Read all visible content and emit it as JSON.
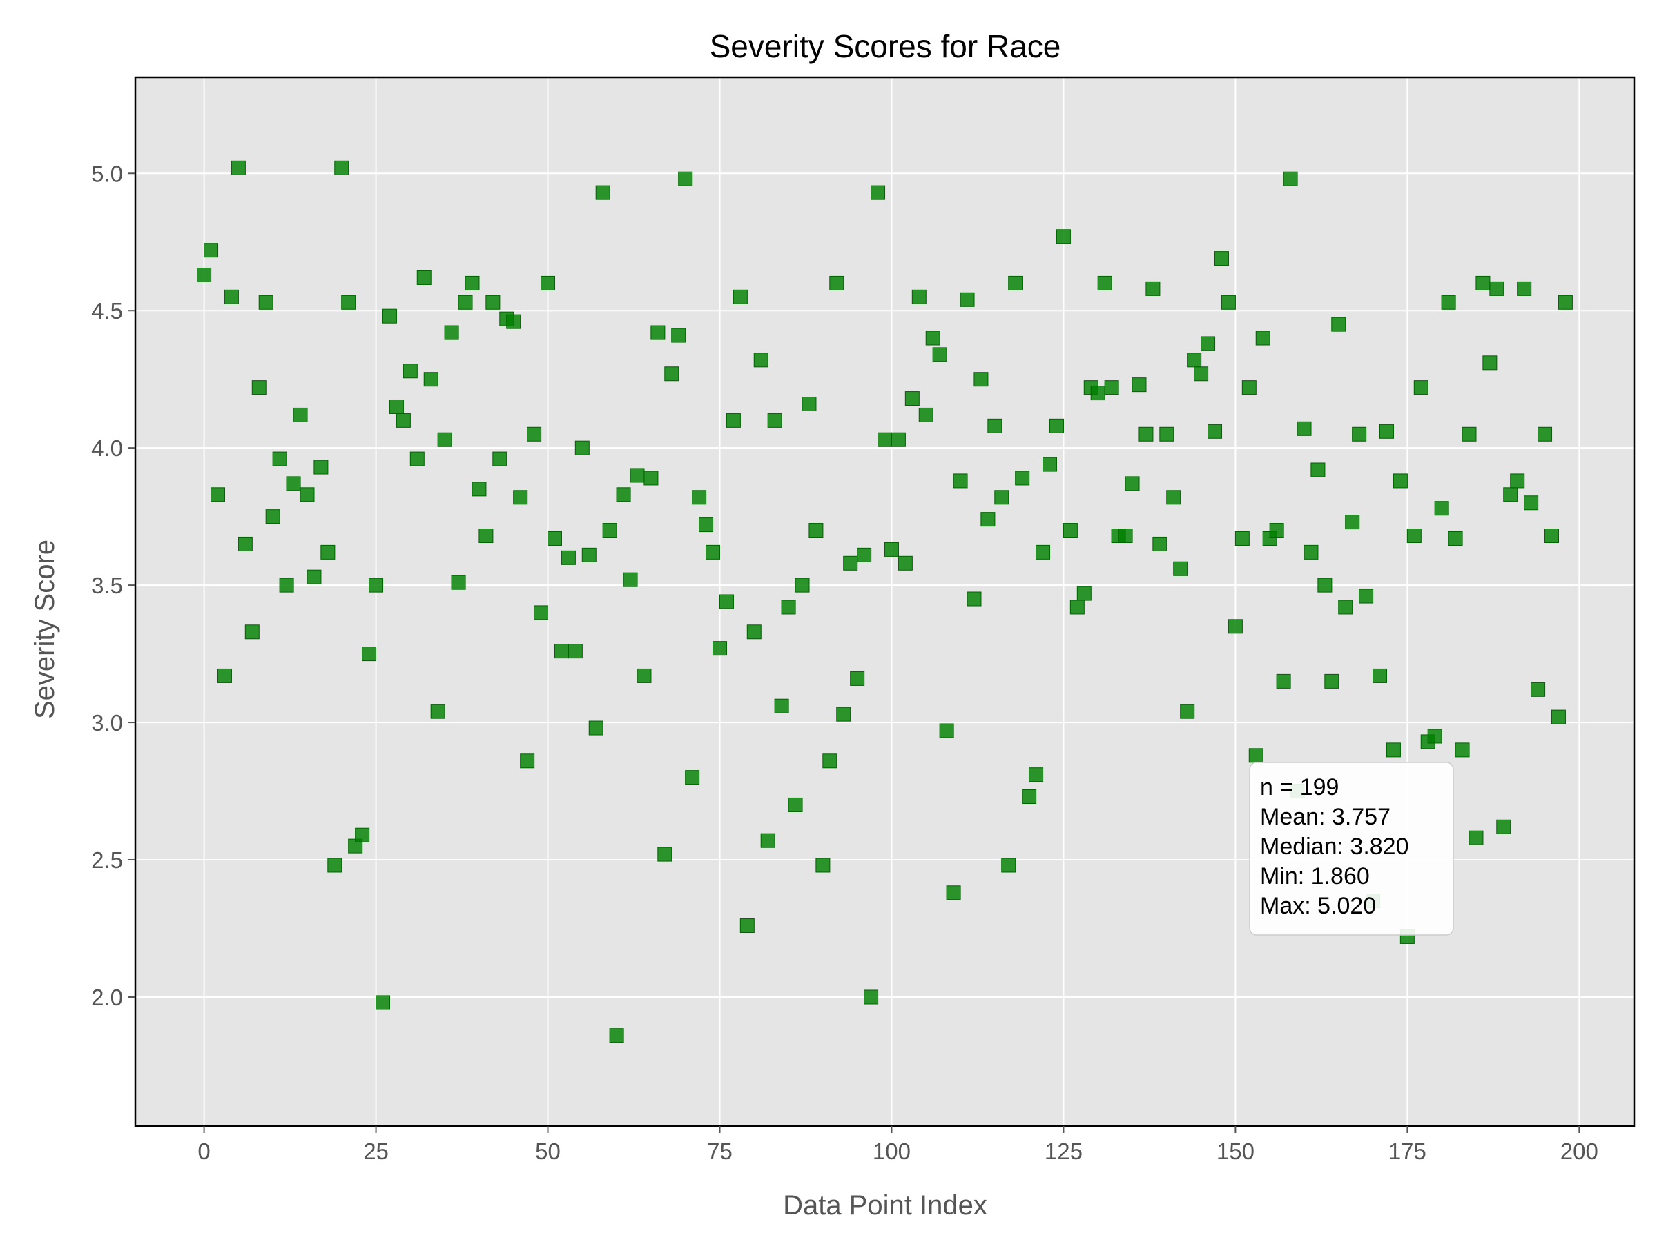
{
  "chart_data": {
    "type": "scatter",
    "title": "Severity Scores for Race",
    "xlabel": "Data Point Index",
    "ylabel": "Severity Score",
    "xlim": [
      -10,
      208
    ],
    "ylim": [
      1.53,
      5.35
    ],
    "xticks": [
      0,
      25,
      50,
      75,
      100,
      125,
      150,
      175,
      200
    ],
    "xtick_labels": [
      "0",
      "25",
      "50",
      "75",
      "100",
      "125",
      "150",
      "175",
      "200"
    ],
    "yticks": [
      2.0,
      2.5,
      3.0,
      3.5,
      4.0,
      4.5,
      5.0
    ],
    "ytick_labels": [
      "2.0",
      "2.5",
      "3.0",
      "3.5",
      "4.0",
      "4.5",
      "5.0"
    ],
    "grid": true,
    "marker": "square",
    "colors": {
      "marker": "#008000",
      "plot_bg": "#e5e5e5",
      "grid": "#ffffff"
    },
    "x": [
      0,
      1,
      2,
      3,
      4,
      5,
      6,
      7,
      8,
      9,
      10,
      11,
      12,
      13,
      14,
      15,
      16,
      17,
      18,
      19,
      20,
      21,
      22,
      23,
      24,
      25,
      26,
      27,
      28,
      29,
      30,
      31,
      32,
      33,
      34,
      35,
      36,
      37,
      38,
      39,
      40,
      41,
      42,
      43,
      44,
      45,
      46,
      47,
      48,
      49,
      50,
      51,
      52,
      53,
      54,
      55,
      56,
      57,
      58,
      59,
      60,
      61,
      62,
      63,
      64,
      65,
      66,
      67,
      68,
      69,
      70,
      71,
      72,
      73,
      74,
      75,
      76,
      77,
      78,
      79,
      80,
      81,
      82,
      83,
      84,
      85,
      86,
      87,
      88,
      89,
      90,
      91,
      92,
      93,
      94,
      95,
      96,
      97,
      98,
      99,
      100,
      101,
      102,
      103,
      104,
      105,
      106,
      107,
      108,
      109,
      110,
      111,
      112,
      113,
      114,
      115,
      116,
      117,
      118,
      119,
      120,
      121,
      122,
      123,
      124,
      125,
      126,
      127,
      128,
      129,
      130,
      131,
      132,
      133,
      134,
      135,
      136,
      137,
      138,
      139,
      140,
      141,
      142,
      143,
      144,
      145,
      146,
      147,
      148,
      149,
      150,
      151,
      152,
      153,
      154,
      155,
      156,
      157,
      158,
      159,
      160,
      161,
      162,
      163,
      164,
      165,
      166,
      167,
      168,
      169,
      170,
      171,
      172,
      173,
      174,
      175,
      176,
      177,
      178,
      179,
      180,
      181,
      182,
      183,
      184,
      185,
      186,
      187,
      188,
      189,
      190,
      191,
      192,
      193,
      194,
      195,
      196,
      197,
      198
    ],
    "y": [
      4.63,
      4.72,
      3.83,
      3.17,
      4.55,
      5.02,
      3.65,
      3.33,
      4.22,
      4.53,
      3.75,
      3.96,
      3.5,
      3.87,
      4.12,
      3.83,
      3.53,
      3.93,
      3.62,
      2.48,
      5.02,
      4.53,
      2.55,
      2.59,
      3.25,
      3.5,
      1.98,
      4.48,
      4.15,
      4.1,
      4.28,
      3.96,
      4.62,
      4.25,
      3.04,
      4.03,
      4.42,
      3.51,
      4.53,
      4.6,
      3.85,
      3.68,
      4.53,
      3.96,
      4.47,
      4.46,
      3.82,
      2.86,
      4.05,
      3.4,
      4.6,
      3.67,
      3.26,
      3.6,
      3.26,
      4.0,
      3.61,
      2.98,
      4.93,
      3.7,
      1.86,
      3.83,
      3.52,
      3.9,
      3.17,
      3.89,
      4.42,
      2.52,
      4.27,
      4.41,
      4.98,
      2.8,
      3.82,
      3.72,
      3.62,
      3.27,
      3.44,
      4.1,
      4.55,
      2.26,
      3.33,
      4.32,
      2.57,
      4.1,
      3.06,
      3.42,
      2.7,
      3.5,
      4.16,
      3.7,
      2.48,
      2.86,
      4.6,
      3.03,
      3.58,
      3.16,
      3.61,
      2.0,
      4.93,
      4.03,
      3.63,
      4.03,
      3.58,
      4.18,
      4.55,
      4.12,
      4.4,
      4.34,
      2.97,
      2.38,
      3.88,
      4.54,
      3.45,
      4.25,
      3.74,
      4.08,
      3.82,
      2.48,
      4.6,
      3.89,
      2.73,
      2.81,
      3.62,
      3.94,
      4.08,
      4.77,
      3.7,
      3.42,
      3.47,
      4.22,
      4.2,
      4.6,
      4.22,
      3.68,
      3.68,
      3.87,
      4.23,
      4.05,
      4.58,
      3.65,
      4.05,
      3.82,
      3.56,
      3.04,
      4.32,
      4.27,
      4.38,
      4.06,
      4.69,
      4.53,
      3.35,
      3.67,
      4.22,
      2.88,
      4.4,
      3.67,
      3.7,
      3.15,
      4.98,
      2.75,
      4.07,
      3.62,
      3.92,
      3.5,
      3.15,
      4.45,
      3.42,
      3.73,
      4.05,
      3.46,
      2.35,
      3.17,
      4.06,
      2.9,
      3.88,
      2.22,
      3.68,
      4.22,
      2.93,
      2.95,
      3.78,
      4.53,
      3.67,
      2.9,
      4.05,
      2.58,
      4.6,
      4.31,
      4.58,
      2.62,
      3.83,
      3.88,
      4.58,
      3.8,
      3.12,
      4.05,
      3.68,
      3.02,
      4.53
    ]
  },
  "stats_box": {
    "lines": [
      "n = 199",
      "Mean: 3.757",
      "Median: 3.820",
      "Min: 1.860",
      "Max: 5.020"
    ]
  }
}
